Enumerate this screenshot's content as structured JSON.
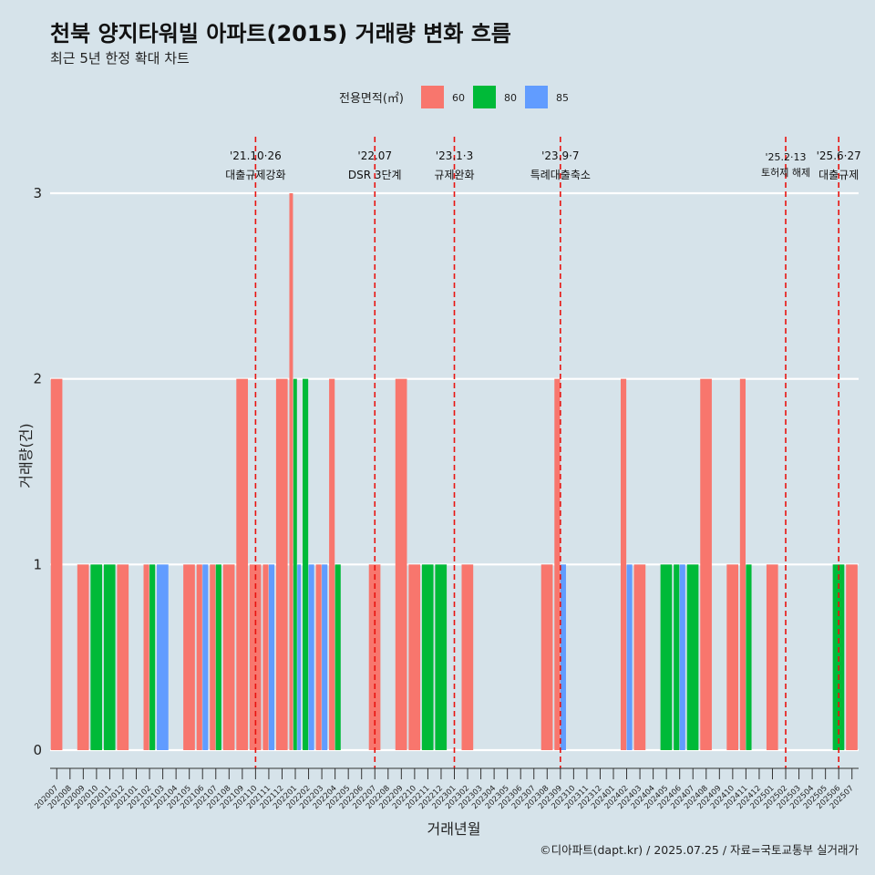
{
  "title": "천북 양지타워빌 아파트(2015) 거래량 변화 흐름",
  "subtitle": "최근 5년 한정 확대 차트",
  "caption": "©디아파트(dapt.kr) / 2025.07.25 / 자료=국토교통부 실거래가",
  "legend": {
    "title": "전용면적(㎡)",
    "items": [
      {
        "label": "60",
        "color": "#f8766d"
      },
      {
        "label": "80",
        "color": "#00ba38"
      },
      {
        "label": "85",
        "color": "#619cff"
      }
    ]
  },
  "chart_data": {
    "type": "bar",
    "xlabel": "거래년월",
    "ylabel": "거래량(건)",
    "ylim": [
      0,
      3
    ],
    "yticks": [
      0,
      1,
      2,
      3
    ],
    "grid": "horizontal",
    "legend_position": "top",
    "categories": [
      "202007",
      "202008",
      "202009",
      "202010",
      "202011",
      "202012",
      "202101",
      "202102",
      "202103",
      "202104",
      "202105",
      "202106",
      "202107",
      "202108",
      "202109",
      "202110",
      "202111",
      "202112",
      "202201",
      "202202",
      "202203",
      "202204",
      "202205",
      "202206",
      "202207",
      "202208",
      "202209",
      "202210",
      "202211",
      "202212",
      "202301",
      "202302",
      "202303",
      "202304",
      "202305",
      "202306",
      "202307",
      "202308",
      "202309",
      "202310",
      "202311",
      "202312",
      "202401",
      "202402",
      "202403",
      "202404",
      "202405",
      "202406",
      "202407",
      "202408",
      "202409",
      "202410",
      "202411",
      "202412",
      "202501",
      "202502",
      "202503",
      "202504",
      "202505",
      "202506",
      "202507"
    ],
    "bars": [
      {
        "month": "202007",
        "groups": [
          {
            "size": "60",
            "count": 2
          }
        ]
      },
      {
        "month": "202009",
        "groups": [
          {
            "size": "60",
            "count": 1
          }
        ]
      },
      {
        "month": "202010",
        "groups": [
          {
            "size": "80",
            "count": 1
          }
        ]
      },
      {
        "month": "202011",
        "groups": [
          {
            "size": "80",
            "count": 1
          }
        ]
      },
      {
        "month": "202012",
        "groups": [
          {
            "size": "60",
            "count": 1
          }
        ]
      },
      {
        "month": "202102",
        "groups": [
          {
            "size": "60",
            "count": 1
          },
          {
            "size": "80",
            "count": 1
          }
        ]
      },
      {
        "month": "202103",
        "groups": [
          {
            "size": "85",
            "count": 1
          }
        ]
      },
      {
        "month": "202105",
        "groups": [
          {
            "size": "60",
            "count": 1
          }
        ]
      },
      {
        "month": "202106",
        "groups": [
          {
            "size": "60",
            "count": 1
          },
          {
            "size": "85",
            "count": 1
          }
        ]
      },
      {
        "month": "202107",
        "groups": [
          {
            "size": "60",
            "count": 1
          },
          {
            "size": "80",
            "count": 1
          }
        ]
      },
      {
        "month": "202108",
        "groups": [
          {
            "size": "60",
            "count": 1
          }
        ]
      },
      {
        "month": "202109",
        "groups": [
          {
            "size": "60",
            "count": 2
          }
        ]
      },
      {
        "month": "202110",
        "groups": [
          {
            "size": "60",
            "count": 1
          }
        ]
      },
      {
        "month": "202111",
        "groups": [
          {
            "size": "60",
            "count": 1
          },
          {
            "size": "85",
            "count": 1
          }
        ]
      },
      {
        "month": "202112",
        "groups": [
          {
            "size": "60",
            "count": 2
          }
        ]
      },
      {
        "month": "202201",
        "groups": [
          {
            "size": "60",
            "count": 3
          },
          {
            "size": "80",
            "count": 2
          },
          {
            "size": "85",
            "count": 1
          }
        ]
      },
      {
        "month": "202202",
        "groups": [
          {
            "size": "80",
            "count": 2
          },
          {
            "size": "85",
            "count": 1
          }
        ]
      },
      {
        "month": "202203",
        "groups": [
          {
            "size": "60",
            "count": 1
          },
          {
            "size": "85",
            "count": 1
          }
        ]
      },
      {
        "month": "202204",
        "groups": [
          {
            "size": "60",
            "count": 2
          },
          {
            "size": "80",
            "count": 1
          }
        ]
      },
      {
        "month": "202207",
        "groups": [
          {
            "size": "60",
            "count": 1
          }
        ]
      },
      {
        "month": "202209",
        "groups": [
          {
            "size": "60",
            "count": 2
          }
        ]
      },
      {
        "month": "202210",
        "groups": [
          {
            "size": "60",
            "count": 1
          }
        ]
      },
      {
        "month": "202211",
        "groups": [
          {
            "size": "80",
            "count": 1
          }
        ]
      },
      {
        "month": "202212",
        "groups": [
          {
            "size": "80",
            "count": 1
          }
        ]
      },
      {
        "month": "202302",
        "groups": [
          {
            "size": "60",
            "count": 1
          }
        ]
      },
      {
        "month": "202308",
        "groups": [
          {
            "size": "60",
            "count": 1
          }
        ]
      },
      {
        "month": "202309",
        "groups": [
          {
            "size": "60",
            "count": 2
          },
          {
            "size": "85",
            "count": 1
          }
        ]
      },
      {
        "month": "202402",
        "groups": [
          {
            "size": "60",
            "count": 2
          },
          {
            "size": "85",
            "count": 1
          }
        ]
      },
      {
        "month": "202403",
        "groups": [
          {
            "size": "60",
            "count": 1
          }
        ]
      },
      {
        "month": "202405",
        "groups": [
          {
            "size": "80",
            "count": 1
          }
        ]
      },
      {
        "month": "202406",
        "groups": [
          {
            "size": "80",
            "count": 1
          },
          {
            "size": "85",
            "count": 1
          }
        ]
      },
      {
        "month": "202407",
        "groups": [
          {
            "size": "80",
            "count": 1
          }
        ]
      },
      {
        "month": "202408",
        "groups": [
          {
            "size": "60",
            "count": 2
          }
        ]
      },
      {
        "month": "202410",
        "groups": [
          {
            "size": "60",
            "count": 1
          }
        ]
      },
      {
        "month": "202411",
        "groups": [
          {
            "size": "60",
            "count": 2
          },
          {
            "size": "80",
            "count": 1
          }
        ]
      },
      {
        "month": "202501",
        "groups": [
          {
            "size": "60",
            "count": 1
          }
        ]
      },
      {
        "month": "202506",
        "groups": [
          {
            "size": "80",
            "count": 1
          }
        ]
      },
      {
        "month": "202507",
        "groups": [
          {
            "size": "60",
            "count": 1
          }
        ]
      }
    ],
    "annotations": [
      {
        "month": "202110",
        "date": "'21.10·26",
        "text": "대출규제강화"
      },
      {
        "month": "202207",
        "date": "'22.07",
        "text": "DSR 3단계"
      },
      {
        "month": "202301",
        "date": "'23.1·3",
        "text": "규제완화"
      },
      {
        "month": "202309",
        "date": "'23.9·7",
        "text": "특례대출축소"
      },
      {
        "month": "202502",
        "date": "'25.2·13",
        "text": "토허제 해제"
      },
      {
        "month": "202506",
        "date": "'25.6·27",
        "text": "대출규제"
      }
    ],
    "annotation_line_color": "#e8130f"
  }
}
